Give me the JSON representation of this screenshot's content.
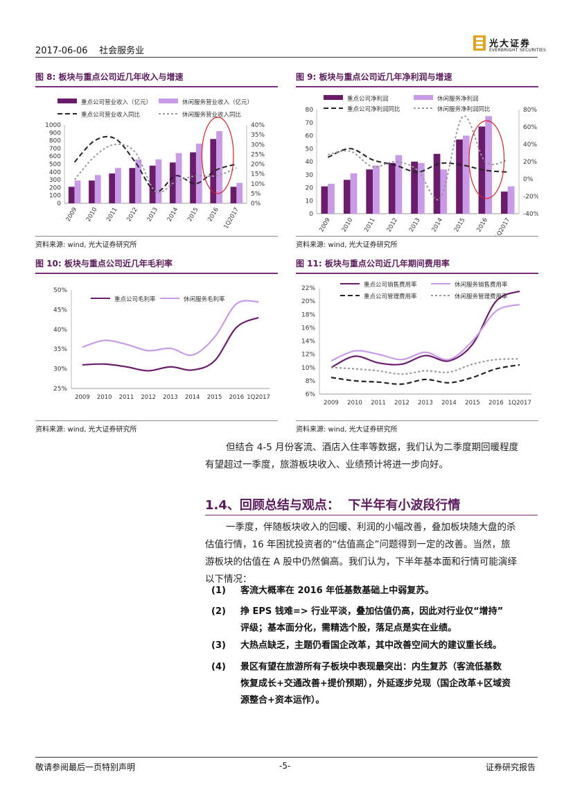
{
  "header": {
    "date_industry": "2017-06-06    社会服务业",
    "logo_cn": "光大证券",
    "logo_en": "EVERBRIGHT SECURITIES",
    "accent": "#7a2c7a"
  },
  "figures": {
    "fig8": {
      "title": "图 8: 板块与重点公司近几年收入与增速",
      "source": "资料来源: wind, 光大证券研究所"
    },
    "fig9": {
      "title": "图 9: 板块与重点公司近几年净利润与增速",
      "source": "资料来源: wind, 光大证券研究所"
    },
    "fig10": {
      "title": "图 10: 板块与重点公司近几年毛利率",
      "source": "资料来源: wind, 光大证券研究所"
    },
    "fig11": {
      "title": "图 11: 板块与重点公司近几年期间费用率",
      "source": "资料来源: wind, 光大证券研究所"
    }
  },
  "chart_data": [
    {
      "id": "fig8",
      "type": "bar",
      "categories": [
        "2009",
        "2010",
        "2011",
        "2012",
        "2013",
        "2014",
        "2015",
        "2016",
        "1Q2017"
      ],
      "series": [
        {
          "name": "重点公司营业收入（亿元）",
          "kind": "bar",
          "color": "#6a1b6a",
          "values": [
            210,
            290,
            380,
            450,
            480,
            520,
            650,
            820,
            210
          ]
        },
        {
          "name": "休闲服务营业收入（亿元）",
          "kind": "bar",
          "color": "#c89ae8",
          "values": [
            290,
            360,
            450,
            560,
            560,
            640,
            760,
            920,
            260
          ]
        },
        {
          "name": "重点公司营业收入同比",
          "kind": "line",
          "axis": "right",
          "color": "#222",
          "dash": "7,4",
          "values": [
            0.21,
            0.32,
            0.33,
            0.21,
            0.06,
            0.14,
            0.1,
            0.17,
            0.2
          ]
        },
        {
          "name": "休闲服务营业收入同比",
          "kind": "line",
          "axis": "right",
          "color": "#999",
          "dash": "3,3",
          "values": [
            0.12,
            0.24,
            0.3,
            0.26,
            0.06,
            0.11,
            0.14,
            0.14,
            0.18
          ]
        }
      ],
      "ylim": [
        0,
        1000
      ],
      "yticks": [
        "0",
        "100",
        "200",
        "300",
        "400",
        "500",
        "600",
        "700",
        "800",
        "900",
        "1000"
      ],
      "y2lim": [
        0,
        0.4
      ],
      "y2ticks": [
        "0%",
        "5%",
        "10%",
        "15%",
        "20%",
        "25%",
        "30%",
        "35%",
        "40%"
      ],
      "annotation": "red-ellipse-2016"
    },
    {
      "id": "fig9",
      "type": "bar",
      "categories": [
        "2009",
        "2010",
        "2011",
        "2012",
        "2013",
        "2014",
        "2015",
        "2016",
        "1Q2017"
      ],
      "series": [
        {
          "name": "重点公司净利润",
          "kind": "bar",
          "color": "#6a1b6a",
          "values": [
            21,
            26,
            34,
            39,
            40,
            46,
            57,
            67,
            17
          ]
        },
        {
          "name": "休闲服务净利润",
          "kind": "bar",
          "color": "#c89ae8",
          "values": [
            23,
            31,
            37,
            45,
            39,
            34,
            60,
            75,
            21
          ]
        },
        {
          "name": "重点公司净利润同比",
          "kind": "line",
          "axis": "right",
          "color": "#222",
          "dash": "7,4",
          "values": [
            0.25,
            0.35,
            0.22,
            0.16,
            0.08,
            0.18,
            0.16,
            0.1,
            0.08
          ]
        },
        {
          "name": "休闲服务净利润同比",
          "kind": "line",
          "axis": "right",
          "color": "#999",
          "dash": "3,3",
          "values": [
            0.28,
            0.32,
            0.14,
            0.2,
            0.1,
            -0.22,
            0.72,
            0.2,
            0.22
          ]
        }
      ],
      "ylim": [
        0,
        80
      ],
      "yticks": [
        "0",
        "10",
        "20",
        "30",
        "40",
        "50",
        "60",
        "70",
        "80"
      ],
      "y2lim": [
        -0.4,
        0.8
      ],
      "y2ticks": [
        "-40%",
        "-20%",
        "0%",
        "20%",
        "40%",
        "60%",
        "80%"
      ],
      "annotation": "red-ellipse-2016"
    },
    {
      "id": "fig10",
      "type": "line",
      "categories": [
        "2009",
        "2010",
        "2011",
        "2012",
        "2013",
        "2014",
        "2015",
        "2016",
        "1Q2017"
      ],
      "series": [
        {
          "name": "重点公司毛利率",
          "color": "#6a1b6a",
          "values": [
            0.31,
            0.312,
            0.305,
            0.295,
            0.305,
            0.297,
            0.32,
            0.405,
            0.43
          ]
        },
        {
          "name": "休闲服务毛利率",
          "color": "#c89ae8",
          "values": [
            0.355,
            0.372,
            0.362,
            0.346,
            0.352,
            0.335,
            0.38,
            0.465,
            0.47
          ]
        }
      ],
      "ylim": [
        0.25,
        0.5
      ],
      "yticks": [
        "25%",
        "30%",
        "35%",
        "40%",
        "45%",
        "50%"
      ]
    },
    {
      "id": "fig11",
      "type": "line",
      "categories": [
        "2009",
        "2010",
        "2011",
        "2012",
        "2013",
        "2014",
        "2015",
        "2016",
        "1Q2017"
      ],
      "series": [
        {
          "name": "重点公司销售费用率",
          "color": "#6a1b6a",
          "dash": "",
          "values": [
            0.1,
            0.117,
            0.107,
            0.105,
            0.118,
            0.11,
            0.135,
            0.2,
            0.215
          ]
        },
        {
          "name": "休闲服务销售费用率",
          "color": "#c89ae8",
          "dash": "",
          "values": [
            0.11,
            0.125,
            0.12,
            0.112,
            0.123,
            0.112,
            0.14,
            0.185,
            0.195
          ]
        },
        {
          "name": "重点公司管理费用率",
          "color": "#222",
          "dash": "7,4",
          "values": [
            0.085,
            0.08,
            0.078,
            0.075,
            0.082,
            0.077,
            0.085,
            0.098,
            0.104
          ]
        },
        {
          "name": "休闲服务管理费用率",
          "color": "#999",
          "dash": "3,3",
          "values": [
            0.1,
            0.098,
            0.095,
            0.09,
            0.095,
            0.093,
            0.105,
            0.112,
            0.113
          ]
        }
      ],
      "ylim": [
        0.06,
        0.22
      ],
      "yticks": [
        "6%",
        "8%",
        "10%",
        "12%",
        "14%",
        "16%",
        "18%",
        "20%",
        "22%"
      ]
    }
  ],
  "body": {
    "para1_line1": "但结合 4-5 月份客流、酒店入住率等数据，我们认为二季度期回暖程度",
    "para1_line2": "有望超过一季度，旅游板块收入、业绩预计将进一步向好。",
    "section_title": "1.4、回顾总结与观点：  下半年有小波段行情",
    "para2": [
      "一季度，伴随板块收入的回暖、利润的小幅改善，叠加板块随大盘的杀",
      "估值行情，16 年困扰投资者的“估值高企”问题得到一定的改善。当然，旅",
      "游板块的估值在 A 股中仍然偏高。我们认为，下半年基本面和行情可能演绎",
      "以下情况："
    ],
    "items": [
      {
        "num": "(1)",
        "lines": [
          "客流大概率在 2016 年低基数基础上中弱复苏。"
        ]
      },
      {
        "num": "(2)",
        "lines": [
          "挣 EPS 钱难=> 行业平淡，叠加估值仍高，因此对行业仅“增持”",
          "评级；基本面分化，需精选个股，落足点是实在业绩。"
        ]
      },
      {
        "num": "(3)",
        "lines": [
          "大热点缺乏，主题仍看国企改革，其中改善空间大的建议重长线。"
        ]
      },
      {
        "num": "(4)",
        "lines": [
          "景区有望在旅游所有子板块中表现最突出：内生复苏（客流低基数",
          "恢复成长+交通改善+提价预期），外延逐步兑现（国企改革+区域资",
          "源整合+资本运作）。"
        ]
      }
    ]
  },
  "footer": {
    "left": "敬请参阅最后一页特别声明",
    "page": "-5-",
    "right": "证券研究报告"
  }
}
